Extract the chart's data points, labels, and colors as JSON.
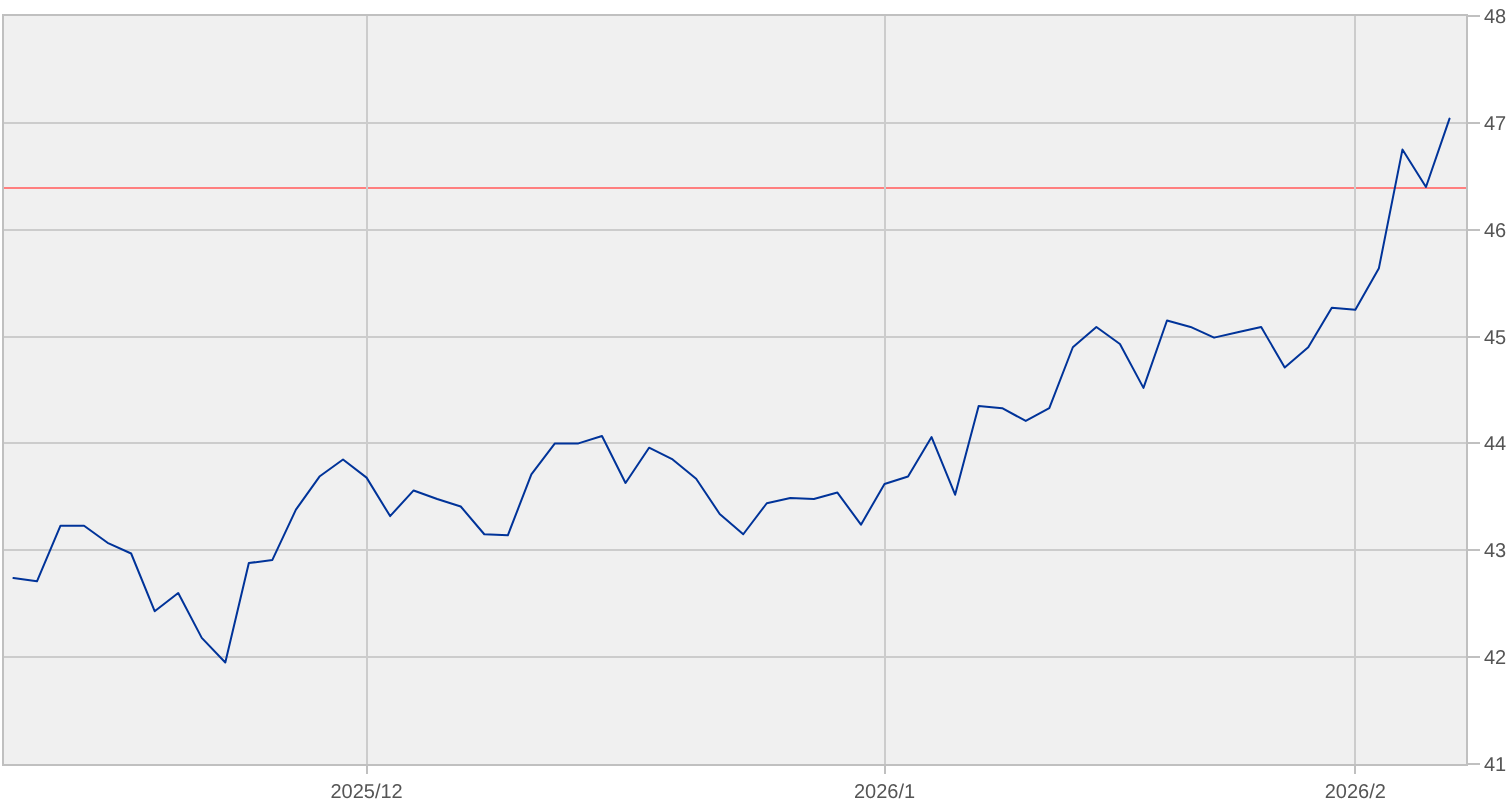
{
  "chart_data": {
    "type": "line",
    "categories": [
      null,
      null,
      null,
      null,
      null,
      null,
      null,
      null,
      null,
      null,
      null,
      null,
      null,
      null,
      null,
      "2025/12",
      null,
      null,
      null,
      null,
      null,
      null,
      null,
      null,
      null,
      null,
      null,
      null,
      null,
      null,
      null,
      null,
      null,
      null,
      null,
      null,
      null,
      "2026/1",
      null,
      null,
      null,
      null,
      null,
      null,
      null,
      null,
      null,
      null,
      null,
      null,
      null,
      null,
      null,
      null,
      null,
      null,
      null,
      "2026/2",
      null,
      null,
      null,
      null
    ],
    "values": [
      42.74,
      42.71,
      43.23,
      43.23,
      43.07,
      42.97,
      42.43,
      42.6,
      42.18,
      41.95,
      42.88,
      42.91,
      43.38,
      43.69,
      43.85,
      43.68,
      43.32,
      43.56,
      43.48,
      43.41,
      43.15,
      43.14,
      43.71,
      44.0,
      44.0,
      44.07,
      43.63,
      43.96,
      43.85,
      43.67,
      43.34,
      43.15,
      43.44,
      43.49,
      43.48,
      43.54,
      43.24,
      43.62,
      43.69,
      44.06,
      43.52,
      44.35,
      44.33,
      44.21,
      44.33,
      44.9,
      45.09,
      44.93,
      44.52,
      45.15,
      45.09,
      44.99,
      45.04,
      45.09,
      44.71,
      44.9,
      45.27,
      45.25,
      45.64,
      46.75,
      46.4,
      47.04
    ],
    "color": "#003399",
    "ylim": [
      41,
      48
    ],
    "yticks": [
      41,
      42,
      43,
      44,
      45,
      46,
      47,
      48
    ],
    "grid": true,
    "ref_lines": [
      {
        "axis": "y",
        "value": 46.39,
        "color": "#ff7f7f"
      }
    ]
  }
}
